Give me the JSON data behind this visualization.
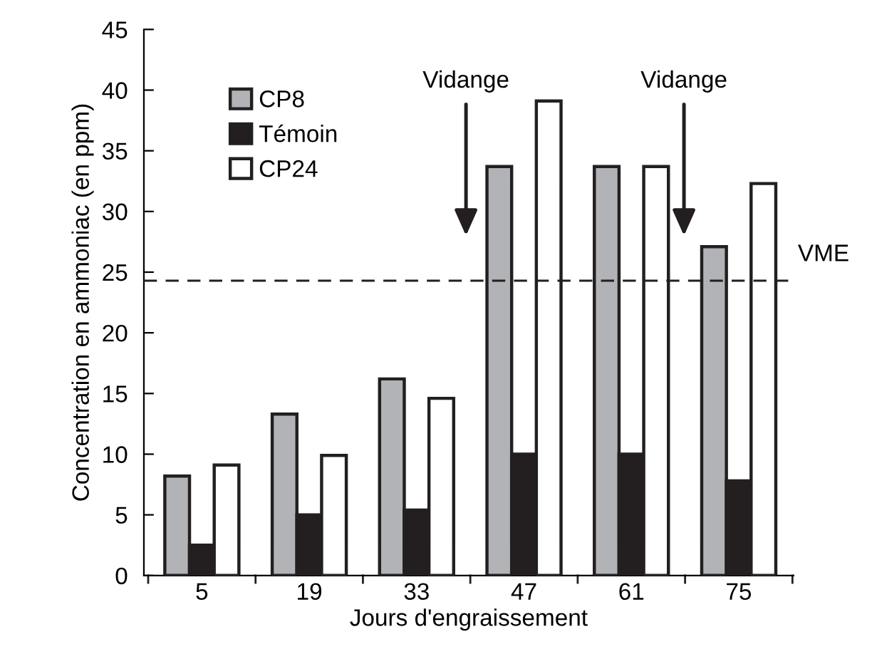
{
  "chart_data": {
    "type": "bar",
    "xlabel": "Jours d'engraissement",
    "ylabel": "Concentration en ammoniac (en ppm)",
    "categories": [
      "5",
      "19",
      "33",
      "47",
      "61",
      "75"
    ],
    "series": [
      {
        "name": "CP8",
        "color": "#b1b3b6",
        "values": [
          8.2,
          13.3,
          16.2,
          33.7,
          33.7,
          27.1
        ]
      },
      {
        "name": "Témoin",
        "color": "#231f20",
        "values": [
          2.5,
          5.0,
          5.4,
          10.0,
          10.0,
          7.8
        ]
      },
      {
        "name": "CP24",
        "color": "#ffffff",
        "values": [
          9.1,
          9.9,
          14.6,
          39.1,
          33.7,
          32.3
        ]
      }
    ],
    "ylim": [
      0,
      45
    ],
    "yticks": [
      0,
      5,
      10,
      15,
      20,
      25,
      30,
      35,
      40,
      45
    ],
    "ref_lines": [
      {
        "axis": "y",
        "value": 24.3,
        "label": "VME",
        "line_style": "dashed",
        "color": "#231f20"
      }
    ],
    "annotations": [
      "Vidange",
      "Vidange"
    ],
    "legend": "top left",
    "grid": false
  }
}
